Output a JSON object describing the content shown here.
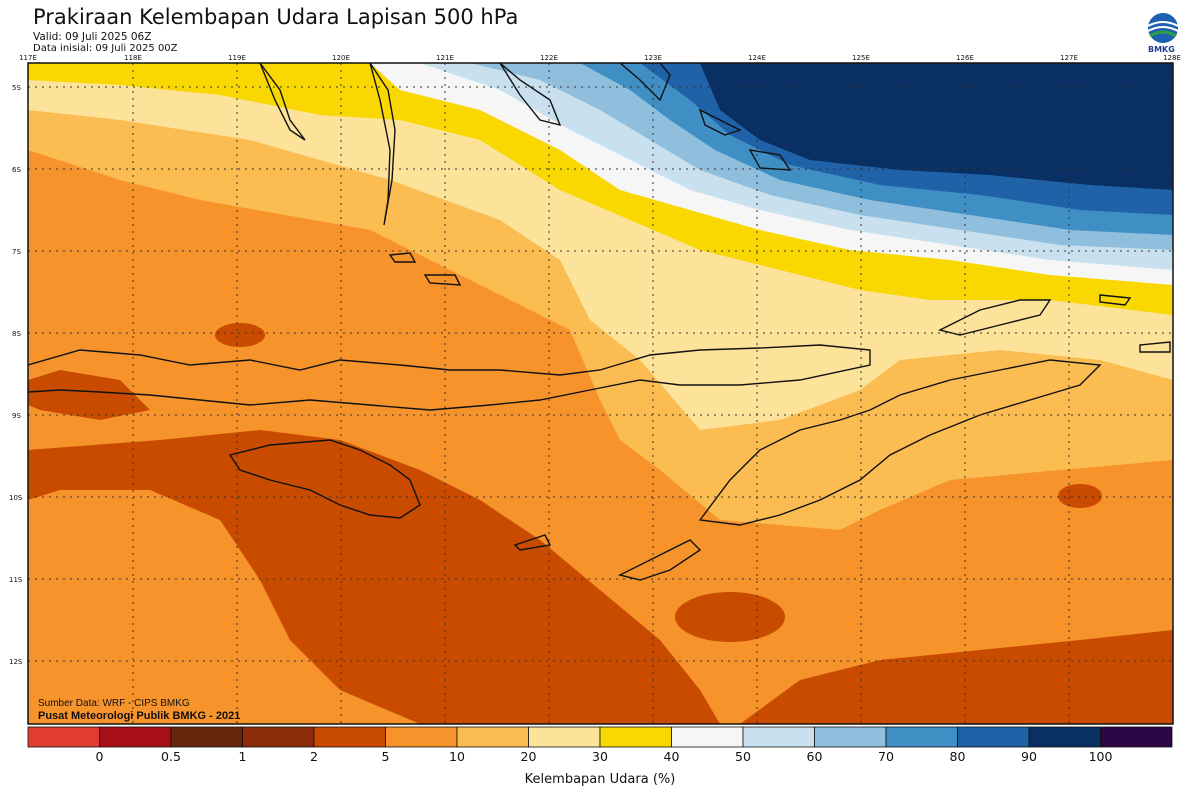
{
  "header": {
    "title": "Prakiraan Kelembapan Udara Lapisan 500 hPa",
    "valid": "Valid: 09 Juli 2025 06Z",
    "init": "Data inisial: 09 Juli 2025 00Z",
    "logo_text": "BMKG"
  },
  "map": {
    "lon_labels": [
      "117E",
      "118E",
      "119E",
      "120E",
      "121E",
      "122E",
      "123E",
      "124E",
      "125E",
      "126E",
      "127E",
      "128E"
    ],
    "lat_labels": [
      "5S",
      "6S",
      "7S",
      "8S",
      "9S",
      "10S",
      "11S",
      "12S"
    ]
  },
  "credits": {
    "source": "Sumber Data: WRF - CIPS BMKG",
    "center": "Pusat Meteorologi Publik BMKG - 2021"
  },
  "colorbar": {
    "title": "Kelembapan Udara (%)",
    "labels": [
      "0",
      "0.5",
      "1",
      "2",
      "5",
      "10",
      "20",
      "30",
      "40",
      "50",
      "60",
      "70",
      "80",
      "90",
      "100"
    ],
    "colors": [
      "#e03c31",
      "#a50f15",
      "#67250e",
      "#8b2b0a",
      "#c84b00",
      "#f7932b",
      "#fbbd52",
      "#fde29a",
      "#f8d800",
      "#f6f6f6",
      "#c9e1ef",
      "#8fbfdc",
      "#3f8fc5",
      "#1f62a8",
      "#0a2f62",
      "#2b0644"
    ]
  }
}
